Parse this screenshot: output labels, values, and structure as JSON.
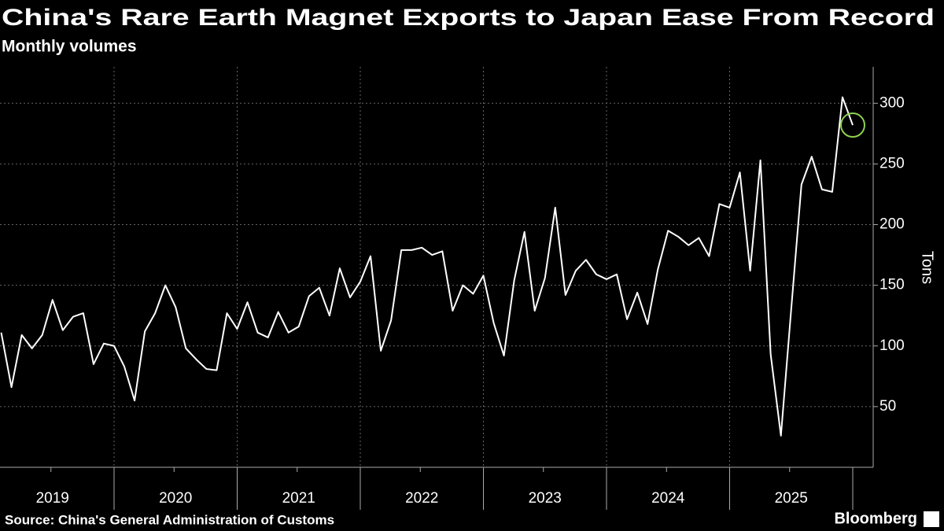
{
  "chart_data": {
    "type": "line",
    "title": "China's Rare Earth Magnet Exports to Japan Ease From Record",
    "subtitle": "Monthly volumes",
    "y_label": "Tons",
    "source": "Source: China's General Administration of Customs",
    "brand": "Bloomberg",
    "x_labels": [
      "2019",
      "2020",
      "2021",
      "2022",
      "2023",
      "2024",
      "2025"
    ],
    "color": "#ffffff",
    "values": [
      111,
      66,
      109,
      98,
      109,
      138,
      113,
      124,
      127,
      85,
      102,
      100,
      83,
      55,
      112,
      127,
      150,
      132,
      98,
      89,
      81,
      80,
      127,
      114,
      136,
      111,
      107,
      128,
      111,
      116,
      141,
      148,
      125,
      164,
      140,
      153,
      174,
      96,
      121,
      179,
      179,
      181,
      175,
      178,
      129,
      150,
      143,
      158,
      119,
      92,
      154,
      194,
      129,
      156,
      214,
      142,
      162,
      171,
      159,
      155,
      159,
      122,
      144,
      118,
      163,
      195,
      190,
      183,
      189,
      174,
      217,
      214,
      243,
      162,
      253,
      93,
      26,
      130,
      233,
      256,
      229,
      227,
      305,
      282
    ],
    "ylim": [
      0,
      330
    ],
    "yticks": [
      50,
      100,
      150,
      200,
      250,
      300
    ],
    "grid": true,
    "highlight_color": "#8fd14f"
  }
}
